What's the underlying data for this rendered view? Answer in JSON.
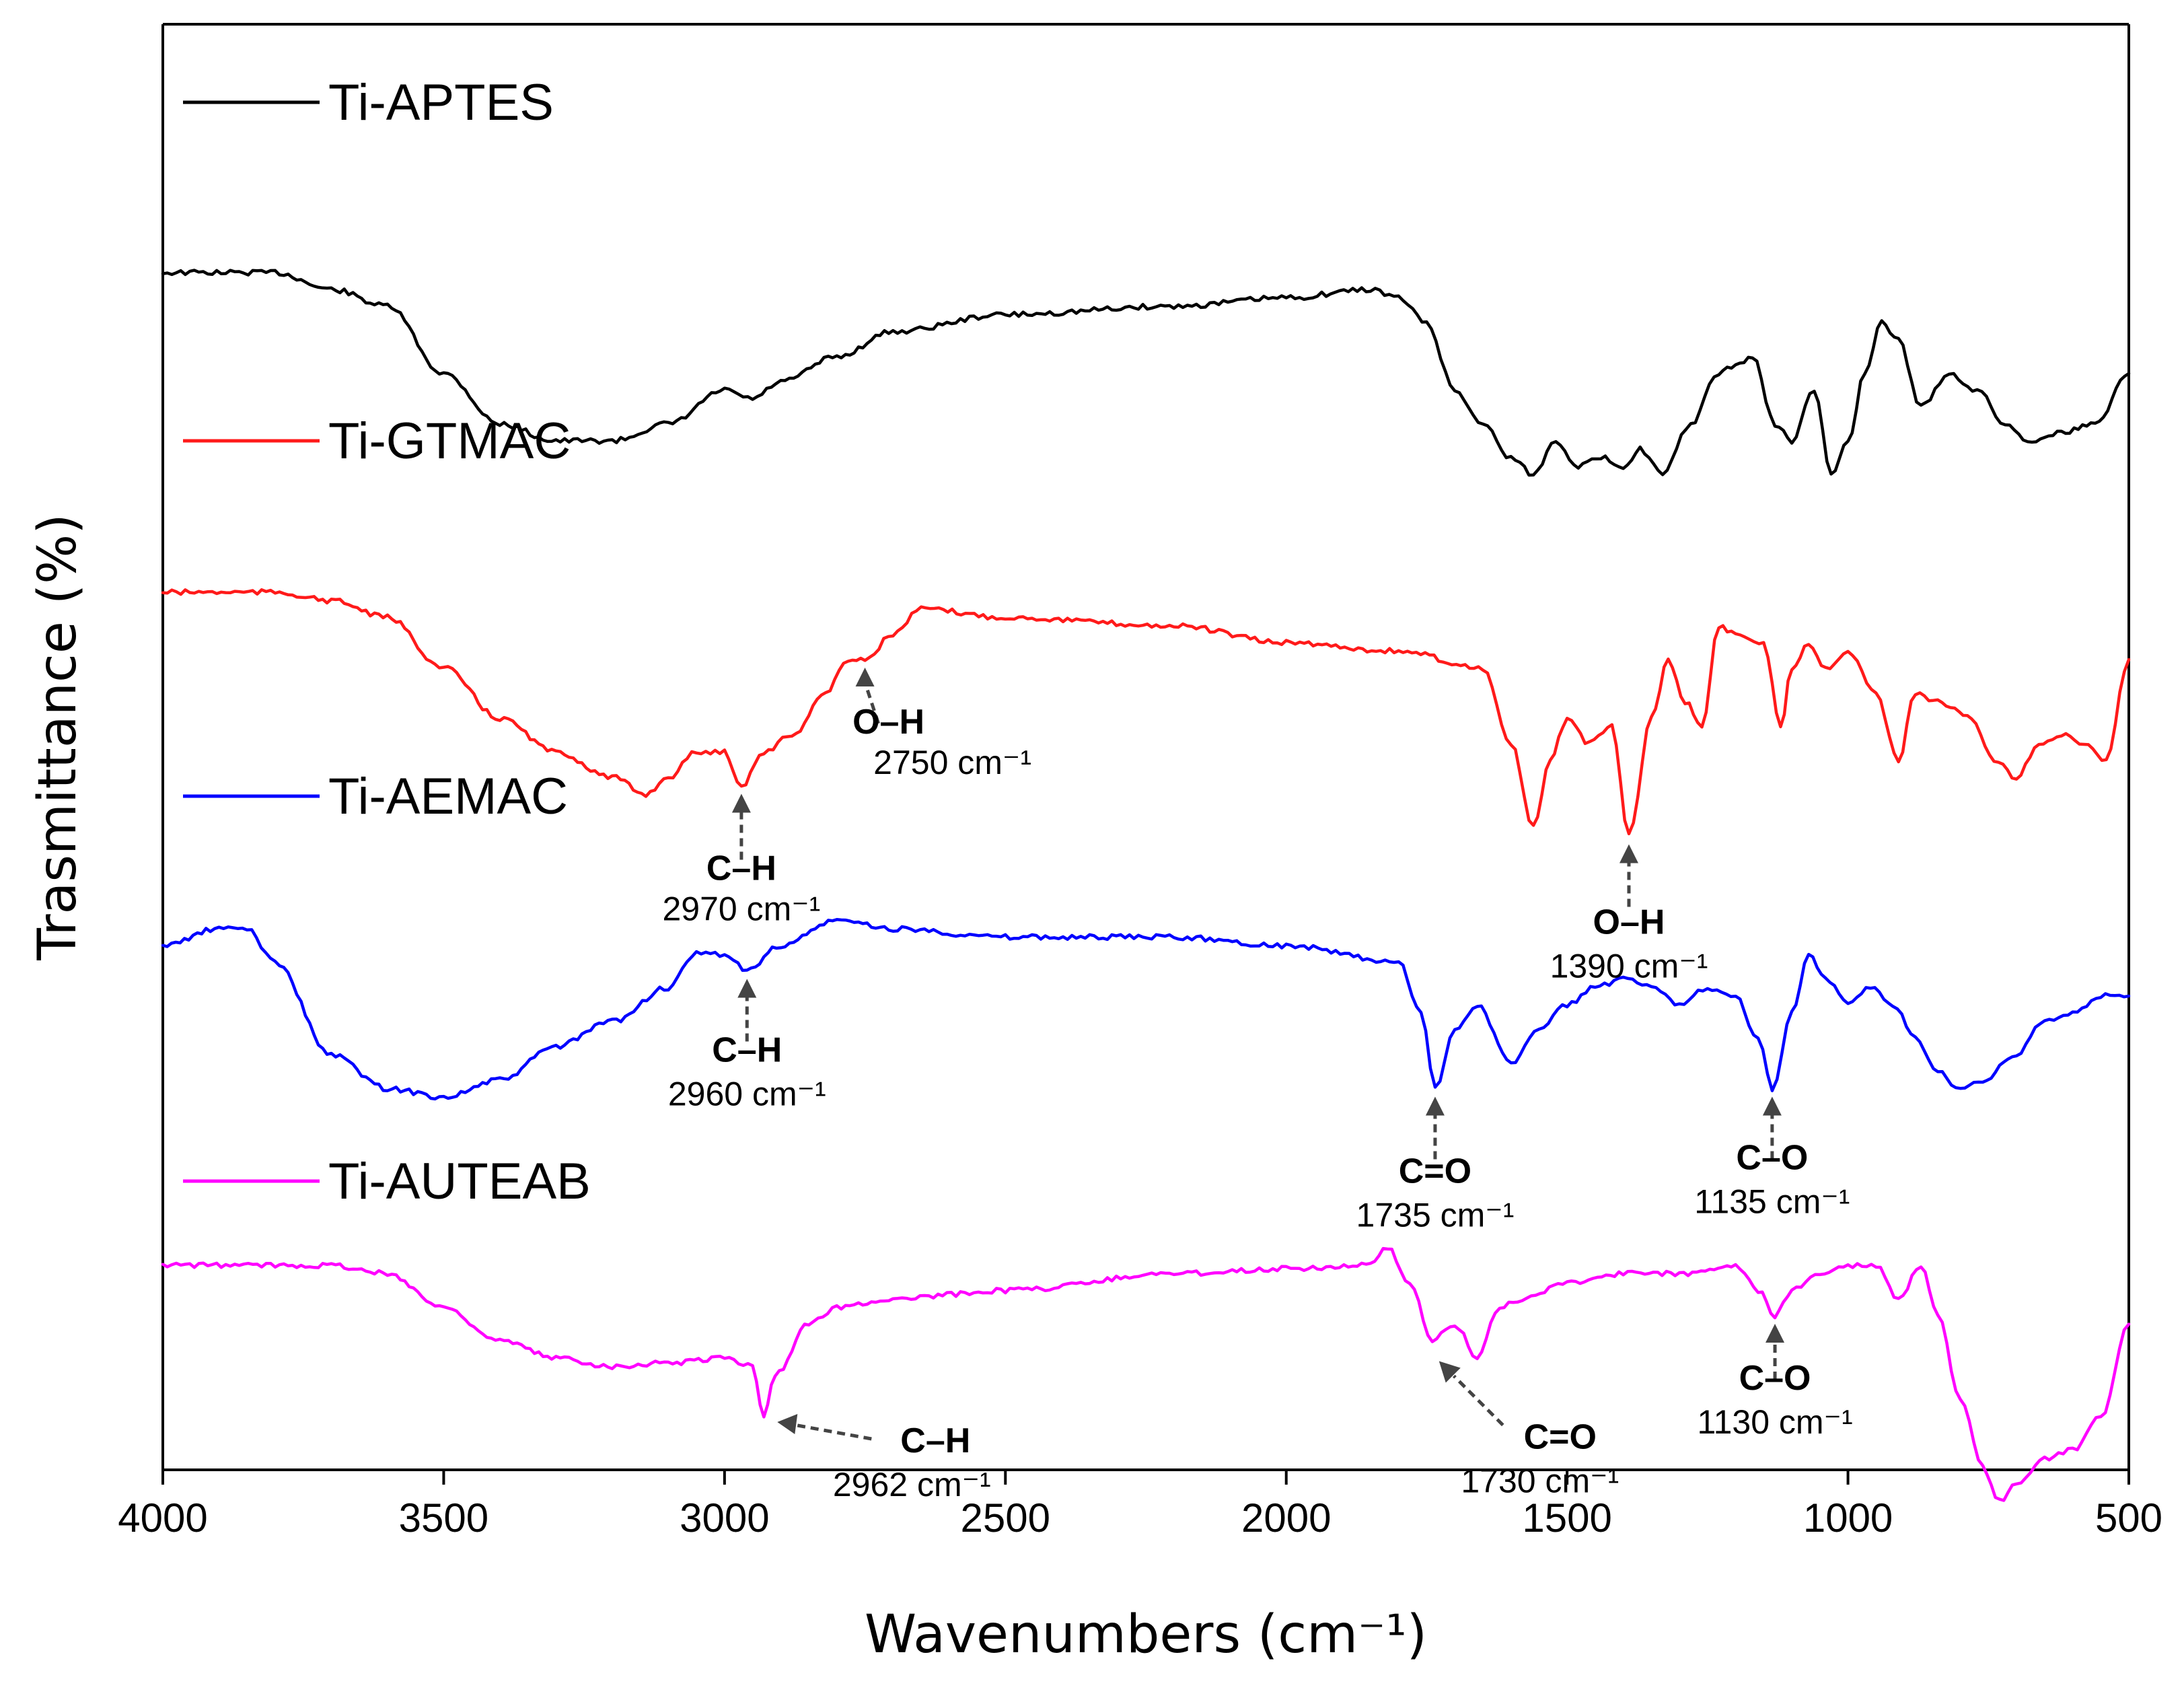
{
  "chart_data": {
    "type": "line",
    "title": "",
    "xlabel": "Wavenumbers (cm⁻¹)",
    "ylabel": "Trasmittance (%)",
    "xlim": [
      4000,
      500
    ],
    "x_ticks": [
      4000,
      3500,
      3000,
      2500,
      2000,
      1500,
      1000,
      500
    ],
    "x_tick_labels": [
      "4000",
      "3500",
      "3000",
      "2500",
      "2000",
      "1500",
      "1000",
      "500"
    ],
    "y_ticks_shown": false,
    "series": [
      {
        "name": "Ti-APTES",
        "color": "#000000",
        "offset": 6.0,
        "points": [
          [
            4000,
            0.1
          ],
          [
            3800,
            0.1
          ],
          [
            3700,
            0.2
          ],
          [
            3600,
            0.3
          ],
          [
            3500,
            0.7
          ],
          [
            3400,
            1.0
          ],
          [
            3300,
            1.1
          ],
          [
            3200,
            1.1
          ],
          [
            3100,
            1.0
          ],
          [
            3000,
            0.8
          ],
          [
            2950,
            0.85
          ],
          [
            2900,
            0.75
          ],
          [
            2800,
            0.6
          ],
          [
            2700,
            0.45
          ],
          [
            2500,
            0.35
          ],
          [
            2200,
            0.3
          ],
          [
            2000,
            0.25
          ],
          [
            1850,
            0.2
          ],
          [
            1800,
            0.25
          ],
          [
            1750,
            0.4
          ],
          [
            1700,
            0.8
          ],
          [
            1650,
            1.0
          ],
          [
            1600,
            1.2
          ],
          [
            1560,
            1.3
          ],
          [
            1520,
            1.1
          ],
          [
            1480,
            1.25
          ],
          [
            1440,
            1.2
          ],
          [
            1400,
            1.25
          ],
          [
            1370,
            1.15
          ],
          [
            1330,
            1.3
          ],
          [
            1280,
            1.0
          ],
          [
            1230,
            0.7
          ],
          [
            1200,
            0.65
          ],
          [
            1170,
            0.6
          ],
          [
            1130,
            1.0
          ],
          [
            1100,
            1.1
          ],
          [
            1060,
            0.8
          ],
          [
            1030,
            1.3
          ],
          [
            1000,
            1.1
          ],
          [
            970,
            0.7
          ],
          [
            940,
            0.4
          ],
          [
            910,
            0.5
          ],
          [
            870,
            0.9
          ],
          [
            820,
            0.7
          ],
          [
            770,
            0.8
          ],
          [
            720,
            1.0
          ],
          [
            680,
            1.1
          ],
          [
            620,
            1.05
          ],
          [
            560,
            1.0
          ],
          [
            500,
            0.7
          ]
        ]
      },
      {
        "name": "Ti-GTMAC",
        "color": "#ff1a1a",
        "offset": 4.0,
        "points": [
          [
            4000,
            0.0
          ],
          [
            3800,
            0.0
          ],
          [
            3700,
            0.05
          ],
          [
            3600,
            0.15
          ],
          [
            3500,
            0.45
          ],
          [
            3400,
            0.75
          ],
          [
            3300,
            0.95
          ],
          [
            3200,
            1.1
          ],
          [
            3140,
            1.2
          ],
          [
            3100,
            1.1
          ],
          [
            3050,
            0.95
          ],
          [
            3000,
            0.95
          ],
          [
            2970,
            1.15
          ],
          [
            2930,
            0.95
          ],
          [
            2880,
            0.85
          ],
          [
            2820,
            0.6
          ],
          [
            2780,
            0.4
          ],
          [
            2750,
            0.4
          ],
          [
            2700,
            0.25
          ],
          [
            2650,
            0.1
          ],
          [
            2500,
            0.15
          ],
          [
            2200,
            0.2
          ],
          [
            2000,
            0.3
          ],
          [
            1800,
            0.35
          ],
          [
            1650,
            0.45
          ],
          [
            1600,
            0.9
          ],
          [
            1560,
            1.4
          ],
          [
            1530,
            1.0
          ],
          [
            1500,
            0.75
          ],
          [
            1460,
            0.9
          ],
          [
            1420,
            0.8
          ],
          [
            1390,
            1.45
          ],
          [
            1350,
            0.75
          ],
          [
            1320,
            0.4
          ],
          [
            1290,
            0.65
          ],
          [
            1260,
            0.8
          ],
          [
            1230,
            0.2
          ],
          [
            1200,
            0.25
          ],
          [
            1150,
            0.3
          ],
          [
            1120,
            0.8
          ],
          [
            1100,
            0.45
          ],
          [
            1070,
            0.3
          ],
          [
            1040,
            0.45
          ],
          [
            1000,
            0.35
          ],
          [
            950,
            0.6
          ],
          [
            910,
            1.0
          ],
          [
            880,
            0.6
          ],
          [
            840,
            0.65
          ],
          [
            780,
            0.75
          ],
          [
            740,
            1.0
          ],
          [
            700,
            1.1
          ],
          [
            660,
            0.9
          ],
          [
            620,
            0.85
          ],
          [
            580,
            0.9
          ],
          [
            540,
            1.0
          ],
          [
            500,
            0.4
          ]
        ]
      },
      {
        "name": "Ti-AEMAC",
        "color": "#0000ff",
        "offset": 2.0,
        "points": [
          [
            4000,
            0.1
          ],
          [
            3900,
            0.0
          ],
          [
            3850,
            0.0
          ],
          [
            3800,
            0.2
          ],
          [
            3700,
            0.75
          ],
          [
            3600,
            0.95
          ],
          [
            3500,
            1.0
          ],
          [
            3400,
            0.9
          ],
          [
            3300,
            0.7
          ],
          [
            3200,
            0.55
          ],
          [
            3100,
            0.35
          ],
          [
            3050,
            0.15
          ],
          [
            3000,
            0.15
          ],
          [
            2960,
            0.25
          ],
          [
            2900,
            0.1
          ],
          [
            2800,
            -0.05
          ],
          [
            2700,
            0.0
          ],
          [
            2500,
            0.05
          ],
          [
            2200,
            0.05
          ],
          [
            2000,
            0.1
          ],
          [
            1800,
            0.2
          ],
          [
            1760,
            0.5
          ],
          [
            1735,
            0.95
          ],
          [
            1700,
            0.6
          ],
          [
            1660,
            0.45
          ],
          [
            1600,
            0.8
          ],
          [
            1550,
            0.6
          ],
          [
            1500,
            0.45
          ],
          [
            1450,
            0.35
          ],
          [
            1400,
            0.3
          ],
          [
            1350,
            0.35
          ],
          [
            1300,
            0.45
          ],
          [
            1250,
            0.35
          ],
          [
            1200,
            0.4
          ],
          [
            1160,
            0.65
          ],
          [
            1135,
            0.95
          ],
          [
            1100,
            0.5
          ],
          [
            1070,
            0.15
          ],
          [
            1040,
            0.3
          ],
          [
            1000,
            0.45
          ],
          [
            960,
            0.35
          ],
          [
            920,
            0.45
          ],
          [
            880,
            0.65
          ],
          [
            840,
            0.85
          ],
          [
            800,
            0.95
          ],
          [
            760,
            0.9
          ],
          [
            700,
            0.75
          ],
          [
            650,
            0.55
          ],
          [
            600,
            0.5
          ],
          [
            550,
            0.4
          ],
          [
            500,
            0.4
          ]
        ]
      },
      {
        "name": "Ti-AUTEAB",
        "color": "#ff00ff",
        "offset": 0.0,
        "points": [
          [
            4000,
            0.0
          ],
          [
            3800,
            0.0
          ],
          [
            3700,
            0.0
          ],
          [
            3600,
            0.05
          ],
          [
            3500,
            0.25
          ],
          [
            3400,
            0.45
          ],
          [
            3300,
            0.55
          ],
          [
            3200,
            0.6
          ],
          [
            3100,
            0.58
          ],
          [
            3000,
            0.55
          ],
          [
            2950,
            0.6
          ],
          [
            2930,
            0.9
          ],
          [
            2910,
            0.65
          ],
          [
            2850,
            0.35
          ],
          [
            2800,
            0.25
          ],
          [
            2700,
            0.2
          ],
          [
            2500,
            0.15
          ],
          [
            2200,
            0.05
          ],
          [
            2000,
            0.02
          ],
          [
            1850,
            0.0
          ],
          [
            1820,
            -0.1
          ],
          [
            1780,
            0.1
          ],
          [
            1740,
            0.45
          ],
          [
            1700,
            0.35
          ],
          [
            1660,
            0.55
          ],
          [
            1620,
            0.25
          ],
          [
            1580,
            0.2
          ],
          [
            1500,
            0.1
          ],
          [
            1400,
            0.05
          ],
          [
            1300,
            0.05
          ],
          [
            1200,
            0.0
          ],
          [
            1160,
            0.15
          ],
          [
            1130,
            0.3
          ],
          [
            1100,
            0.15
          ],
          [
            1050,
            0.05
          ],
          [
            1000,
            0.0
          ],
          [
            950,
            0.0
          ],
          [
            910,
            0.2
          ],
          [
            870,
            0.0
          ],
          [
            840,
            0.3
          ],
          [
            800,
            0.8
          ],
          [
            760,
            1.2
          ],
          [
            730,
            1.4
          ],
          [
            700,
            1.3
          ],
          [
            650,
            1.15
          ],
          [
            600,
            1.1
          ],
          [
            550,
            0.9
          ],
          [
            500,
            0.35
          ]
        ]
      }
    ],
    "annotations": [
      {
        "series": "Ti-GTMAC",
        "bond": "C–H",
        "label": "2970 cm⁻¹",
        "x": 2970
      },
      {
        "series": "Ti-GTMAC",
        "bond": "O–H",
        "label": "2750 cm⁻¹",
        "x": 2750
      },
      {
        "series": "Ti-GTMAC",
        "bond": "O–H",
        "label": "1390 cm⁻¹",
        "x": 1390
      },
      {
        "series": "Ti-AEMAC",
        "bond": "C–H",
        "label": "2960 cm⁻¹",
        "x": 2960
      },
      {
        "series": "Ti-AEMAC",
        "bond": "C=O",
        "label": "1735 cm⁻¹",
        "x": 1735
      },
      {
        "series": "Ti-AEMAC",
        "bond": "C–O",
        "label": "1135 cm⁻¹",
        "x": 1135
      },
      {
        "series": "Ti-AUTEAB",
        "bond": "C–H",
        "label": "2962 cm⁻¹",
        "x": 2930
      },
      {
        "series": "Ti-AUTEAB",
        "bond": "C=O",
        "label": "1730 cm⁻¹",
        "x": 1740
      },
      {
        "series": "Ti-AUTEAB",
        "bond": "C–O",
        "label": "1130 cm⁻¹",
        "x": 1130
      }
    ]
  }
}
